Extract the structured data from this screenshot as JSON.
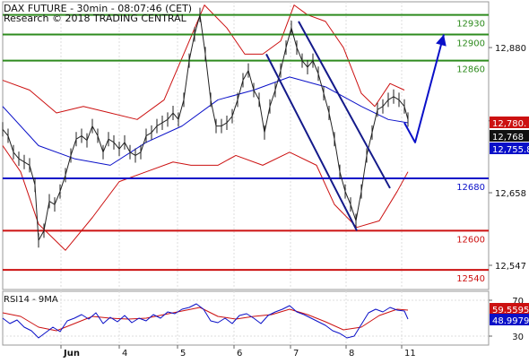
{
  "chart_data": {
    "type": "line",
    "title": "DAX FUTURE - 30min - 08:07:46 (CET)",
    "subtitle": "Research © 2018 TRADING CENTRAL",
    "price_axis": {
      "ylim": [
        12510,
        12950
      ],
      "ticks": [
        "12,880",
        "12,768",
        "12,658",
        "12,547"
      ]
    },
    "x_labels": [
      "Jun",
      "4",
      "5",
      "6",
      "7",
      "8",
      "11"
    ],
    "levels": [
      {
        "value": 12930,
        "label": "12930",
        "kind": "resistance",
        "color": "#2e8b1e"
      },
      {
        "value": 12900,
        "label": "12900",
        "kind": "resistance",
        "color": "#2e8b1e"
      },
      {
        "value": 12860,
        "label": "12860",
        "kind": "resistance",
        "color": "#2e8b1e"
      },
      {
        "value": 12680,
        "label": "12680",
        "kind": "pivot",
        "color": "#0a10c8"
      },
      {
        "value": 12600,
        "label": "12600",
        "kind": "support",
        "color": "#cc1111"
      },
      {
        "value": 12540,
        "label": "12540",
        "kind": "support",
        "color": "#cc1111"
      }
    ],
    "price_series": [
      {
        "x": 0,
        "y": 12755
      },
      {
        "x": 6,
        "y": 12745
      },
      {
        "x": 12,
        "y": 12720
      },
      {
        "x": 18,
        "y": 12710
      },
      {
        "x": 24,
        "y": 12705
      },
      {
        "x": 30,
        "y": 12700
      },
      {
        "x": 36,
        "y": 12670
      },
      {
        "x": 40,
        "y": 12585
      },
      {
        "x": 46,
        "y": 12600
      },
      {
        "x": 52,
        "y": 12645
      },
      {
        "x": 58,
        "y": 12640
      },
      {
        "x": 64,
        "y": 12660
      },
      {
        "x": 70,
        "y": 12685
      },
      {
        "x": 76,
        "y": 12715
      },
      {
        "x": 82,
        "y": 12740
      },
      {
        "x": 88,
        "y": 12745
      },
      {
        "x": 94,
        "y": 12738
      },
      {
        "x": 100,
        "y": 12760
      },
      {
        "x": 106,
        "y": 12745
      },
      {
        "x": 112,
        "y": 12720
      },
      {
        "x": 118,
        "y": 12740
      },
      {
        "x": 124,
        "y": 12735
      },
      {
        "x": 130,
        "y": 12725
      },
      {
        "x": 136,
        "y": 12735
      },
      {
        "x": 142,
        "y": 12720
      },
      {
        "x": 148,
        "y": 12715
      },
      {
        "x": 154,
        "y": 12720
      },
      {
        "x": 160,
        "y": 12745
      },
      {
        "x": 166,
        "y": 12750
      },
      {
        "x": 172,
        "y": 12760
      },
      {
        "x": 178,
        "y": 12765
      },
      {
        "x": 184,
        "y": 12770
      },
      {
        "x": 190,
        "y": 12780
      },
      {
        "x": 196,
        "y": 12770
      },
      {
        "x": 202,
        "y": 12800
      },
      {
        "x": 208,
        "y": 12860
      },
      {
        "x": 214,
        "y": 12900
      },
      {
        "x": 220,
        "y": 12930
      },
      {
        "x": 226,
        "y": 12870
      },
      {
        "x": 232,
        "y": 12800
      },
      {
        "x": 238,
        "y": 12760
      },
      {
        "x": 244,
        "y": 12760
      },
      {
        "x": 250,
        "y": 12765
      },
      {
        "x": 256,
        "y": 12775
      },
      {
        "x": 262,
        "y": 12800
      },
      {
        "x": 268,
        "y": 12830
      },
      {
        "x": 274,
        "y": 12845
      },
      {
        "x": 280,
        "y": 12815
      },
      {
        "x": 286,
        "y": 12800
      },
      {
        "x": 292,
        "y": 12750
      },
      {
        "x": 298,
        "y": 12790
      },
      {
        "x": 304,
        "y": 12815
      },
      {
        "x": 310,
        "y": 12845
      },
      {
        "x": 316,
        "y": 12880
      },
      {
        "x": 322,
        "y": 12910
      },
      {
        "x": 328,
        "y": 12880
      },
      {
        "x": 334,
        "y": 12860
      },
      {
        "x": 340,
        "y": 12850
      },
      {
        "x": 346,
        "y": 12860
      },
      {
        "x": 352,
        "y": 12840
      },
      {
        "x": 358,
        "y": 12810
      },
      {
        "x": 364,
        "y": 12780
      },
      {
        "x": 370,
        "y": 12740
      },
      {
        "x": 376,
        "y": 12690
      },
      {
        "x": 382,
        "y": 12660
      },
      {
        "x": 388,
        "y": 12640
      },
      {
        "x": 394,
        "y": 12615
      },
      {
        "x": 400,
        "y": 12660
      },
      {
        "x": 406,
        "y": 12715
      },
      {
        "x": 412,
        "y": 12750
      },
      {
        "x": 418,
        "y": 12785
      },
      {
        "x": 424,
        "y": 12790
      },
      {
        "x": 430,
        "y": 12800
      },
      {
        "x": 436,
        "y": 12805
      },
      {
        "x": 442,
        "y": 12800
      },
      {
        "x": 448,
        "y": 12790
      },
      {
        "x": 452,
        "y": 12770
      }
    ],
    "moving_average": [
      {
        "x": 0,
        "y": 12790
      },
      {
        "x": 40,
        "y": 12730
      },
      {
        "x": 80,
        "y": 12710
      },
      {
        "x": 120,
        "y": 12700
      },
      {
        "x": 160,
        "y": 12735
      },
      {
        "x": 200,
        "y": 12760
      },
      {
        "x": 240,
        "y": 12800
      },
      {
        "x": 280,
        "y": 12815
      },
      {
        "x": 320,
        "y": 12835
      },
      {
        "x": 360,
        "y": 12820
      },
      {
        "x": 400,
        "y": 12790
      },
      {
        "x": 430,
        "y": 12770
      },
      {
        "x": 452,
        "y": 12765
      }
    ],
    "bollinger_upper": [
      {
        "x": 0,
        "y": 12830
      },
      {
        "x": 30,
        "y": 12815
      },
      {
        "x": 60,
        "y": 12780
      },
      {
        "x": 90,
        "y": 12790
      },
      {
        "x": 120,
        "y": 12780
      },
      {
        "x": 150,
        "y": 12770
      },
      {
        "x": 180,
        "y": 12800
      },
      {
        "x": 205,
        "y": 12880
      },
      {
        "x": 225,
        "y": 12945
      },
      {
        "x": 250,
        "y": 12910
      },
      {
        "x": 270,
        "y": 12870
      },
      {
        "x": 290,
        "y": 12870
      },
      {
        "x": 310,
        "y": 12890
      },
      {
        "x": 325,
        "y": 12945
      },
      {
        "x": 340,
        "y": 12930
      },
      {
        "x": 360,
        "y": 12920
      },
      {
        "x": 380,
        "y": 12880
      },
      {
        "x": 400,
        "y": 12810
      },
      {
        "x": 415,
        "y": 12790
      },
      {
        "x": 432,
        "y": 12825
      },
      {
        "x": 448,
        "y": 12815
      }
    ],
    "bollinger_lower": [
      {
        "x": 0,
        "y": 12730
      },
      {
        "x": 20,
        "y": 12690
      },
      {
        "x": 40,
        "y": 12610
      },
      {
        "x": 70,
        "y": 12570
      },
      {
        "x": 100,
        "y": 12620
      },
      {
        "x": 130,
        "y": 12675
      },
      {
        "x": 160,
        "y": 12690
      },
      {
        "x": 190,
        "y": 12705
      },
      {
        "x": 210,
        "y": 12700
      },
      {
        "x": 240,
        "y": 12700
      },
      {
        "x": 260,
        "y": 12715
      },
      {
        "x": 290,
        "y": 12700
      },
      {
        "x": 320,
        "y": 12720
      },
      {
        "x": 350,
        "y": 12700
      },
      {
        "x": 370,
        "y": 12640
      },
      {
        "x": 395,
        "y": 12605
      },
      {
        "x": 420,
        "y": 12615
      },
      {
        "x": 440,
        "y": 12660
      },
      {
        "x": 452,
        "y": 12690
      }
    ],
    "trendlines": [
      {
        "x1": 294,
        "y1": 12870,
        "x2": 395,
        "y2": 12600
      },
      {
        "x1": 330,
        "y1": 12920,
        "x2": 432,
        "y2": 12665
      }
    ],
    "projection_arrow": [
      {
        "x": 448,
        "y": 12765
      },
      {
        "x": 460,
        "y": 12735
      },
      {
        "x": 492,
        "y": 12900
      }
    ],
    "price_tags": [
      {
        "value": 12780,
        "label": "12,780.",
        "color": "#cc1111"
      },
      {
        "value": 12768,
        "label": "12,768",
        "color": "#111111"
      },
      {
        "value": 12755.8,
        "label": "12,755.8",
        "color": "#0a10c8"
      }
    ],
    "rsi": {
      "title": "RSI14 - 9MA",
      "ylim": [
        20,
        80
      ],
      "ticks": [
        "70",
        "30"
      ],
      "current_ma": {
        "value": 59.5595,
        "label": "59.5595",
        "color": "#cc1111"
      },
      "current_rsi": {
        "value": 48.9979,
        "label": "48.9979",
        "color": "#0a10c8"
      },
      "rsi_series": [
        {
          "x": 0,
          "y": 50
        },
        {
          "x": 8,
          "y": 44
        },
        {
          "x": 16,
          "y": 48
        },
        {
          "x": 24,
          "y": 40
        },
        {
          "x": 32,
          "y": 36
        },
        {
          "x": 40,
          "y": 28
        },
        {
          "x": 48,
          "y": 34
        },
        {
          "x": 56,
          "y": 40
        },
        {
          "x": 64,
          "y": 35
        },
        {
          "x": 72,
          "y": 47
        },
        {
          "x": 80,
          "y": 50
        },
        {
          "x": 88,
          "y": 54
        },
        {
          "x": 96,
          "y": 49
        },
        {
          "x": 104,
          "y": 56
        },
        {
          "x": 112,
          "y": 44
        },
        {
          "x": 120,
          "y": 51
        },
        {
          "x": 128,
          "y": 46
        },
        {
          "x": 136,
          "y": 53
        },
        {
          "x": 144,
          "y": 45
        },
        {
          "x": 152,
          "y": 50
        },
        {
          "x": 160,
          "y": 47
        },
        {
          "x": 168,
          "y": 54
        },
        {
          "x": 176,
          "y": 50
        },
        {
          "x": 184,
          "y": 57
        },
        {
          "x": 192,
          "y": 55
        },
        {
          "x": 200,
          "y": 60
        },
        {
          "x": 208,
          "y": 62
        },
        {
          "x": 216,
          "y": 66
        },
        {
          "x": 224,
          "y": 60
        },
        {
          "x": 232,
          "y": 47
        },
        {
          "x": 240,
          "y": 45
        },
        {
          "x": 248,
          "y": 50
        },
        {
          "x": 256,
          "y": 44
        },
        {
          "x": 264,
          "y": 53
        },
        {
          "x": 272,
          "y": 55
        },
        {
          "x": 280,
          "y": 50
        },
        {
          "x": 288,
          "y": 44
        },
        {
          "x": 296,
          "y": 53
        },
        {
          "x": 304,
          "y": 57
        },
        {
          "x": 312,
          "y": 60
        },
        {
          "x": 320,
          "y": 64
        },
        {
          "x": 328,
          "y": 57
        },
        {
          "x": 336,
          "y": 54
        },
        {
          "x": 344,
          "y": 50
        },
        {
          "x": 352,
          "y": 46
        },
        {
          "x": 360,
          "y": 42
        },
        {
          "x": 368,
          "y": 36
        },
        {
          "x": 376,
          "y": 33
        },
        {
          "x": 384,
          "y": 28
        },
        {
          "x": 392,
          "y": 30
        },
        {
          "x": 400,
          "y": 43
        },
        {
          "x": 408,
          "y": 56
        },
        {
          "x": 416,
          "y": 60
        },
        {
          "x": 424,
          "y": 57
        },
        {
          "x": 432,
          "y": 62
        },
        {
          "x": 440,
          "y": 59
        },
        {
          "x": 448,
          "y": 58
        },
        {
          "x": 452,
          "y": 49
        }
      ],
      "ma_series": [
        {
          "x": 0,
          "y": 56
        },
        {
          "x": 20,
          "y": 52
        },
        {
          "x": 40,
          "y": 40
        },
        {
          "x": 60,
          "y": 36
        },
        {
          "x": 80,
          "y": 44
        },
        {
          "x": 100,
          "y": 52
        },
        {
          "x": 120,
          "y": 50
        },
        {
          "x": 140,
          "y": 49
        },
        {
          "x": 160,
          "y": 50
        },
        {
          "x": 180,
          "y": 54
        },
        {
          "x": 200,
          "y": 58
        },
        {
          "x": 220,
          "y": 62
        },
        {
          "x": 240,
          "y": 52
        },
        {
          "x": 260,
          "y": 49
        },
        {
          "x": 280,
          "y": 52
        },
        {
          "x": 300,
          "y": 54
        },
        {
          "x": 320,
          "y": 60
        },
        {
          "x": 340,
          "y": 54
        },
        {
          "x": 360,
          "y": 46
        },
        {
          "x": 380,
          "y": 37
        },
        {
          "x": 400,
          "y": 40
        },
        {
          "x": 420,
          "y": 53
        },
        {
          "x": 440,
          "y": 60
        },
        {
          "x": 452,
          "y": 59
        }
      ]
    }
  }
}
